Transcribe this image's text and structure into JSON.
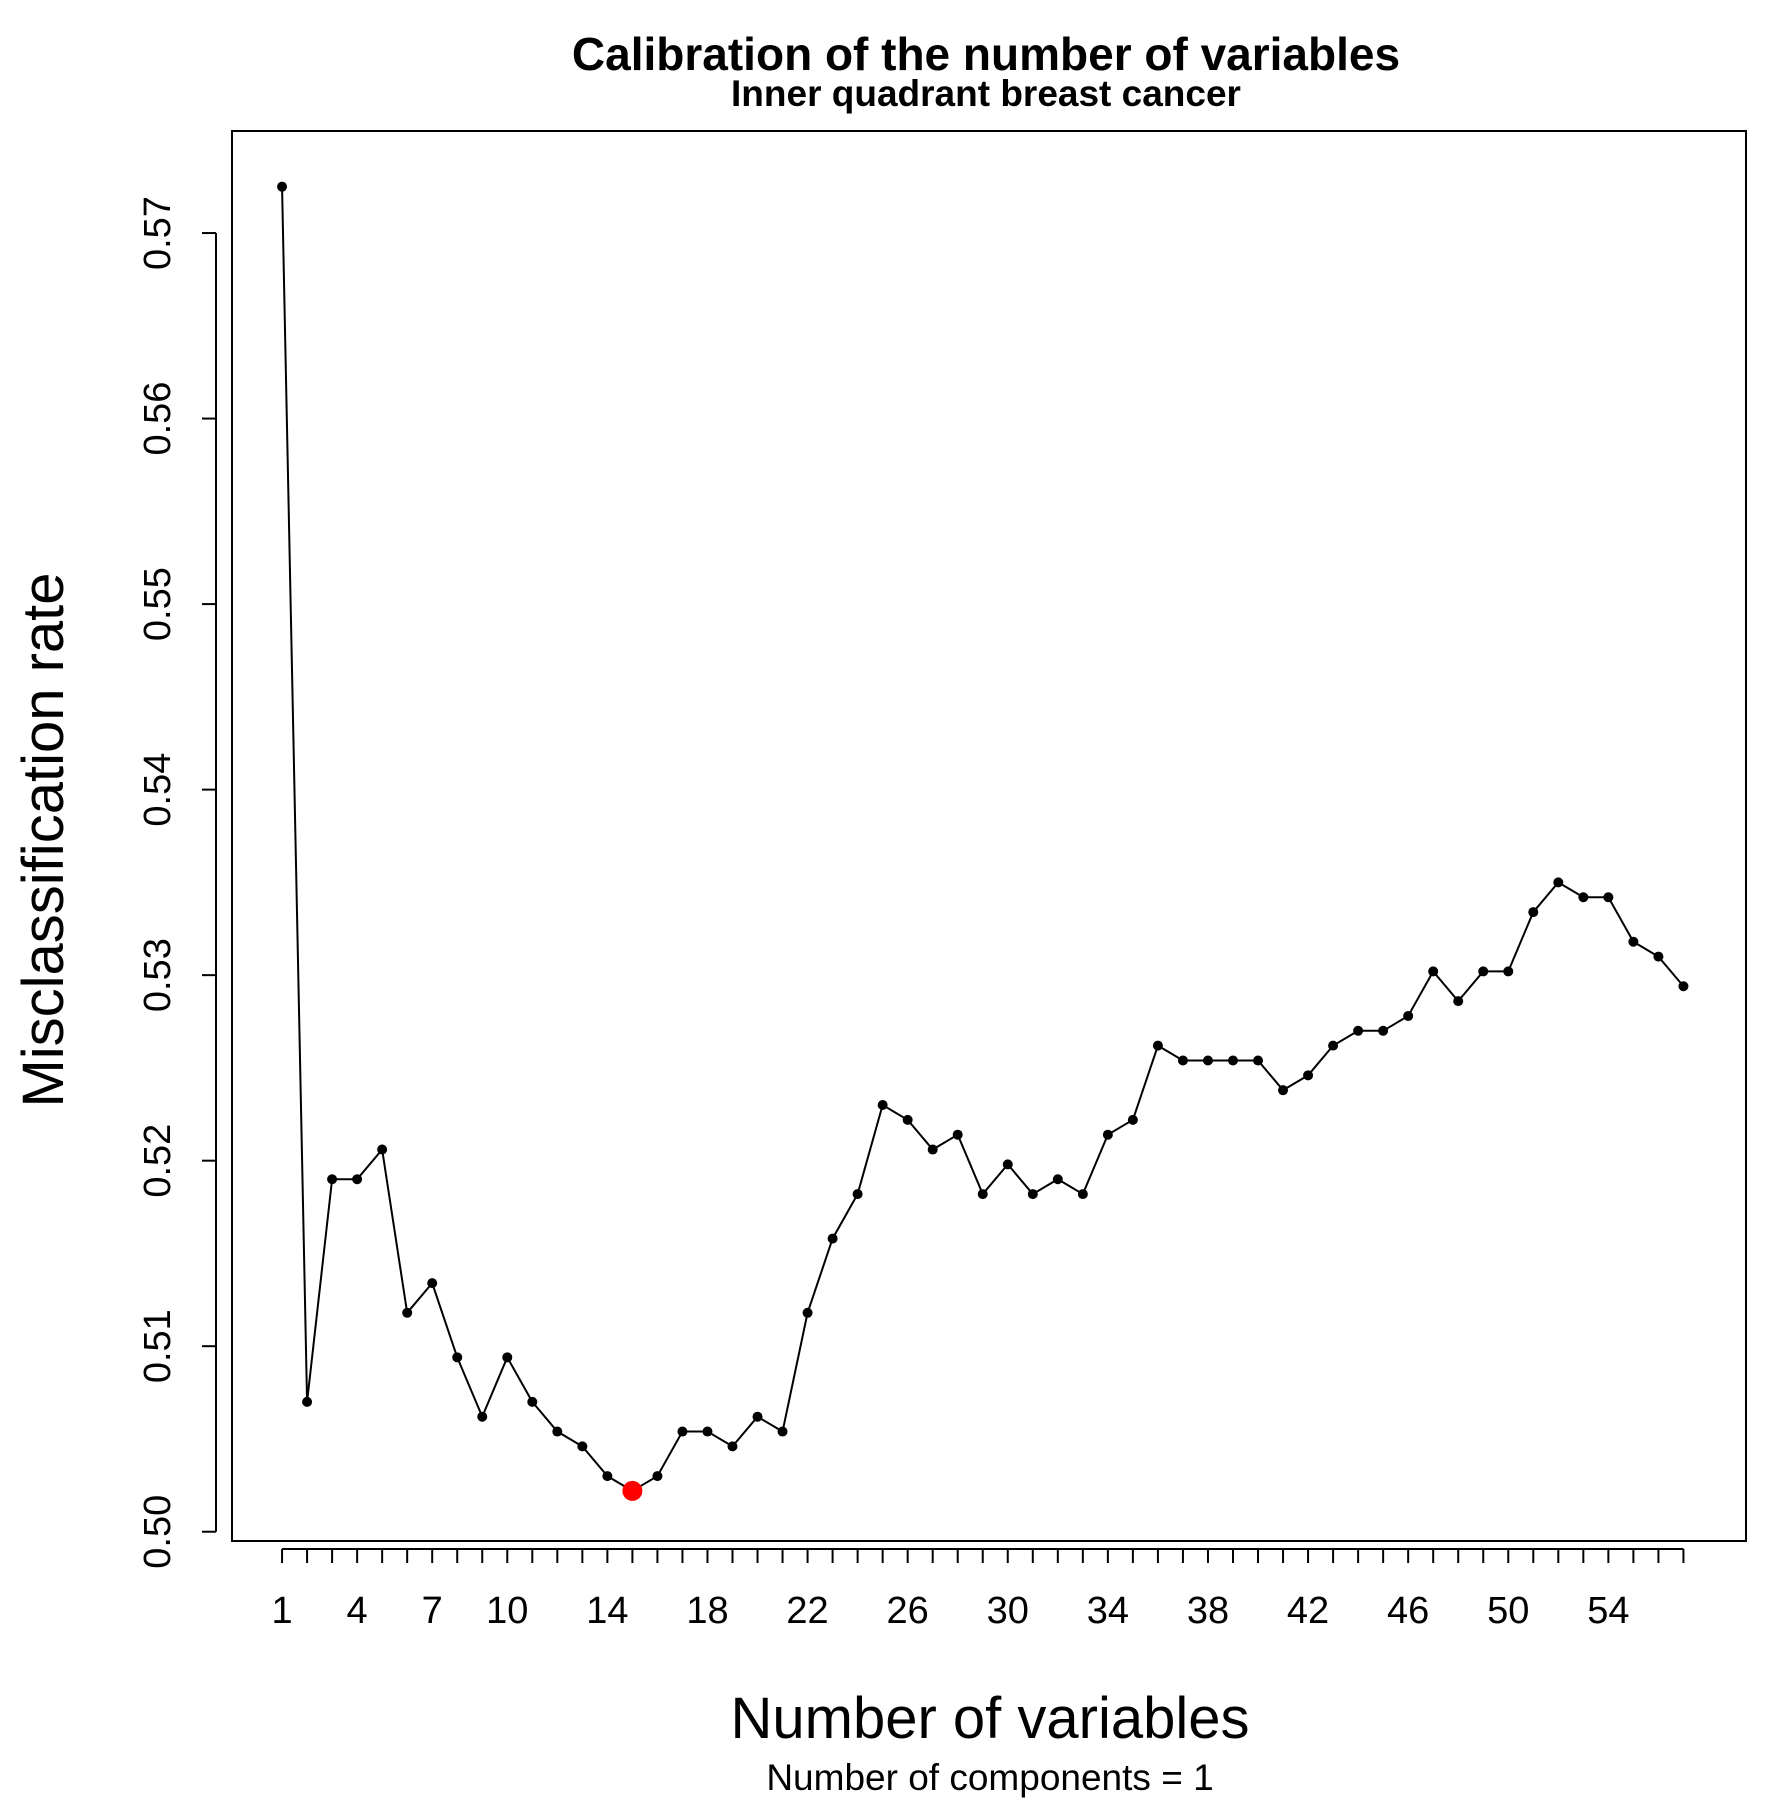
{
  "chart_data": {
    "type": "line",
    "title": "Calibration of the number of variables",
    "subtitle": "Inner quadrant breast cancer",
    "xlabel": "Number of variables",
    "x_sublabel": "Number of components = 1",
    "ylabel": "Misclassification rate",
    "x": [
      1,
      2,
      3,
      4,
      5,
      6,
      7,
      8,
      9,
      10,
      11,
      12,
      13,
      14,
      15,
      16,
      17,
      18,
      19,
      20,
      21,
      22,
      23,
      24,
      25,
      26,
      27,
      28,
      29,
      30,
      31,
      32,
      33,
      34,
      35,
      36,
      37,
      38,
      39,
      40,
      41,
      42,
      43,
      44,
      45,
      46,
      47,
      48,
      49,
      50,
      51,
      52,
      53,
      54,
      55,
      56,
      57
    ],
    "y": [
      0.5725,
      0.507,
      0.519,
      0.519,
      0.5206,
      0.5118,
      0.5134,
      0.5094,
      0.5062,
      0.5094,
      0.507,
      0.5054,
      0.5046,
      0.503,
      0.5022,
      0.503,
      0.5054,
      0.5054,
      0.5046,
      0.5062,
      0.5054,
      0.5118,
      0.5158,
      0.5182,
      0.523,
      0.5222,
      0.5206,
      0.5214,
      0.5182,
      0.5198,
      0.5182,
      0.519,
      0.5182,
      0.5214,
      0.5222,
      0.5262,
      0.5254,
      0.5254,
      0.5254,
      0.5254,
      0.5238,
      0.5246,
      0.5262,
      0.527,
      0.527,
      0.5278,
      0.5302,
      0.5286,
      0.5302,
      0.5302,
      0.5334,
      0.535,
      0.5342,
      0.5342,
      0.5318,
      0.531,
      0.5294
    ],
    "highlight": {
      "x": 15,
      "y": 0.5022,
      "color": "#ff0000"
    },
    "line_color": "#000000",
    "xlim": [
      -1,
      59.5
    ],
    "ylim": [
      0.4995,
      0.5755
    ],
    "x_tick_labels": [
      "1",
      "4",
      "7",
      "10",
      "14",
      "18",
      "22",
      "26",
      "30",
      "34",
      "38",
      "42",
      "46",
      "50",
      "54"
    ],
    "x_tick_label_positions": [
      1,
      4,
      7,
      10,
      14,
      18,
      22,
      26,
      30,
      34,
      38,
      42,
      46,
      50,
      54
    ],
    "y_ticks": [
      0.5,
      0.51,
      0.52,
      0.53,
      0.54,
      0.55,
      0.56,
      0.57
    ],
    "y_tick_labels": [
      "0.50",
      "0.51",
      "0.52",
      "0.53",
      "0.54",
      "0.55",
      "0.56",
      "0.57"
    ],
    "grid": false,
    "legend": "none"
  }
}
